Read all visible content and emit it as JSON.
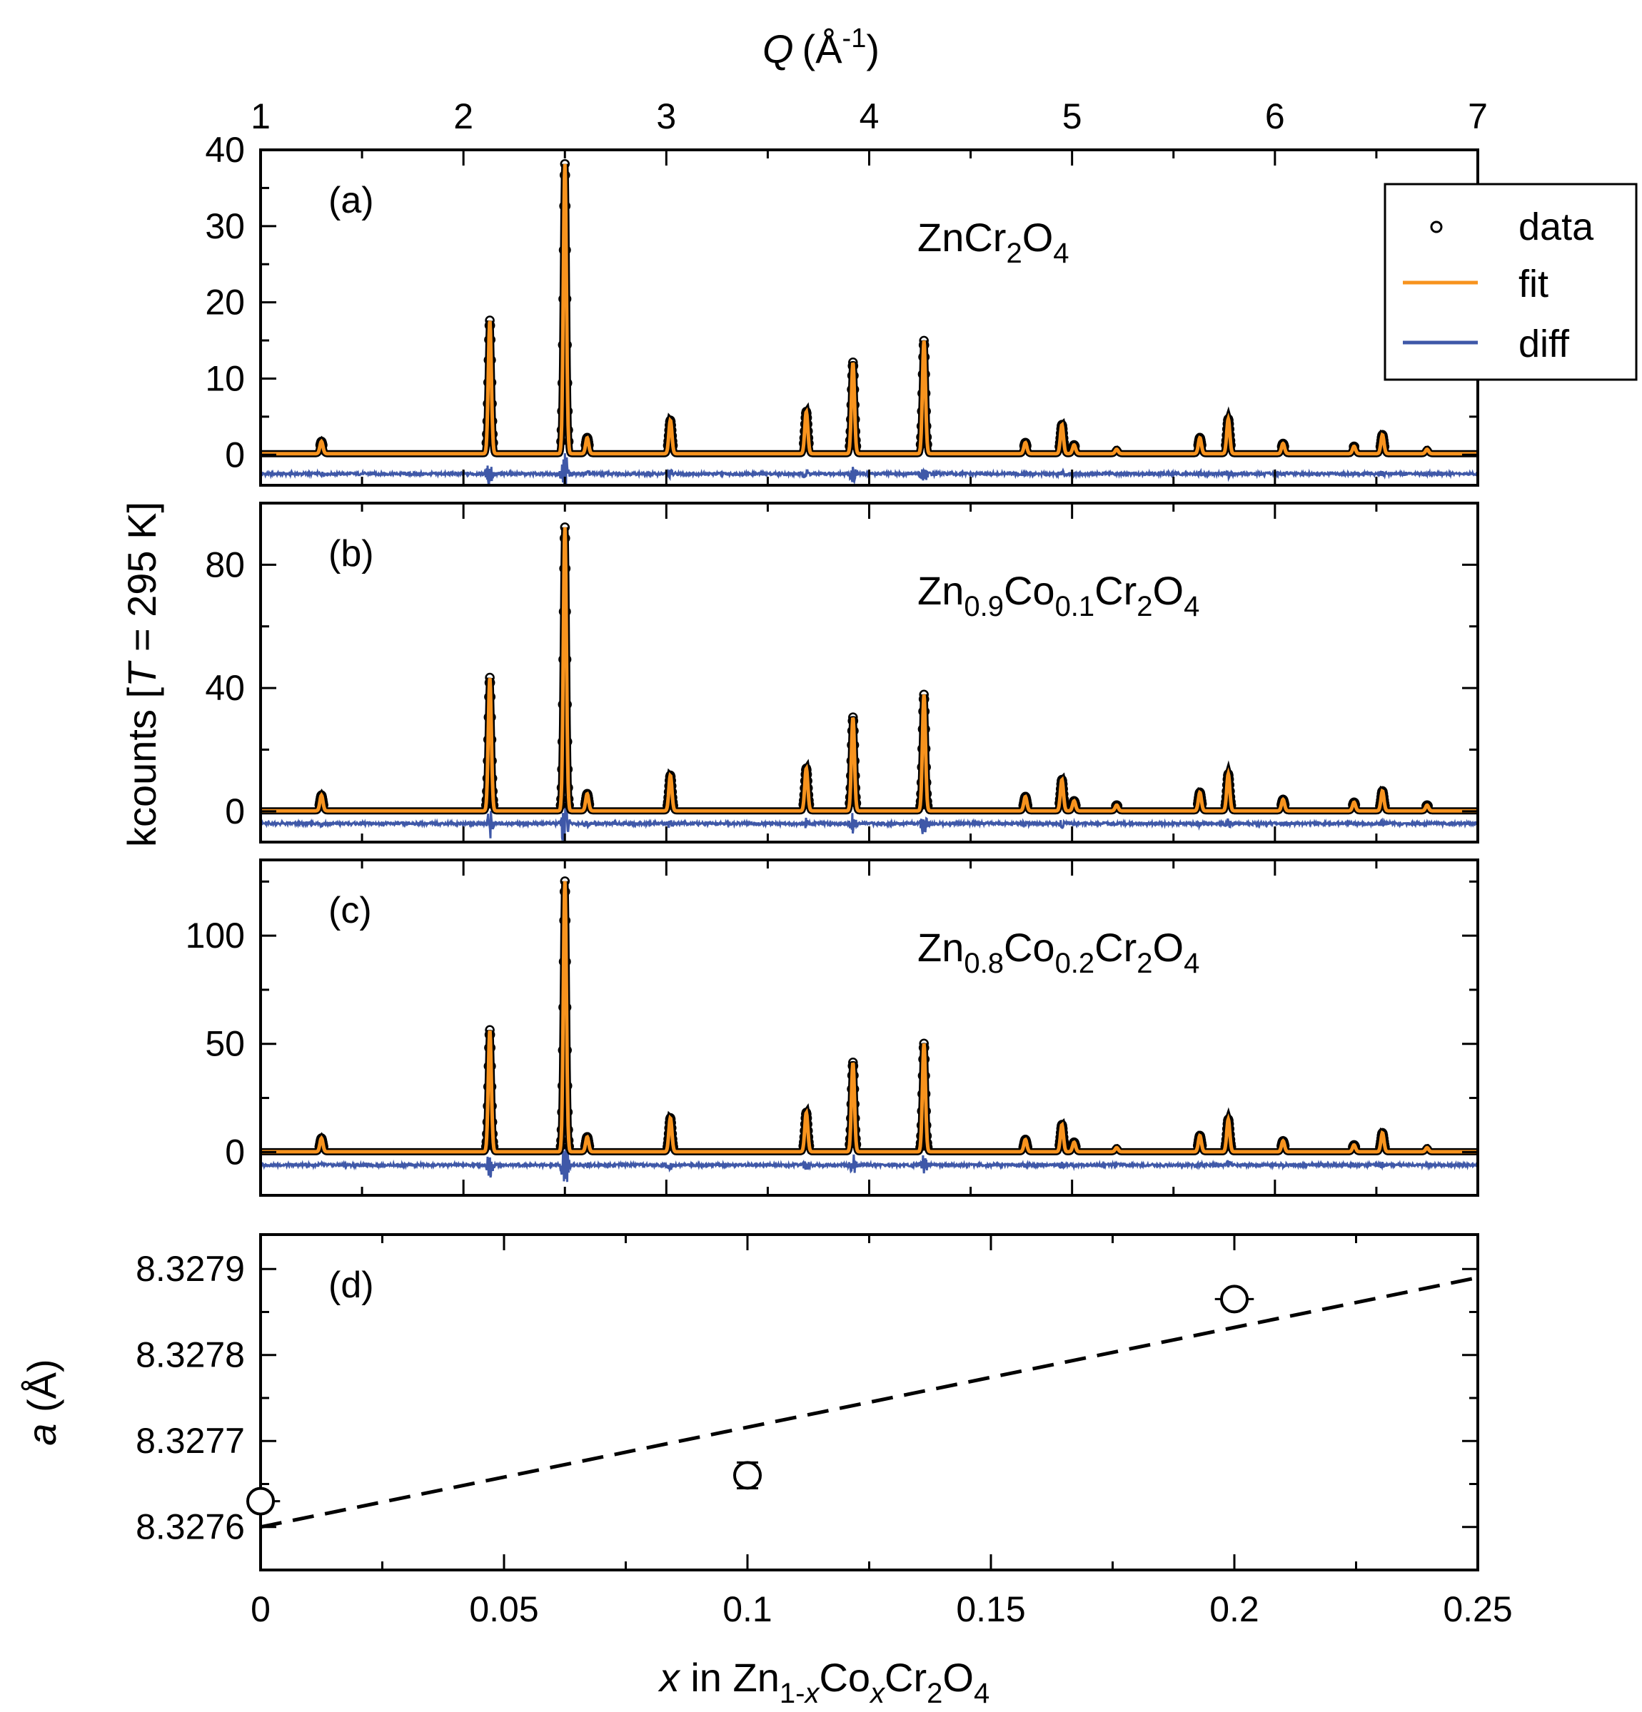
{
  "colors": {
    "data": "#000000",
    "fit": "#f7931e",
    "diff": "#3f58a8",
    "trend": "#000000"
  },
  "top_axis": {
    "label_italic": "Q",
    "label_unit": "(Å",
    "label_sup": "-1",
    "label_close": ")",
    "range": [
      1,
      7
    ],
    "ticks": [
      "1",
      "2",
      "3",
      "4",
      "5",
      "6",
      "7"
    ]
  },
  "shared_ylabel": {
    "prefix": "kcounts [",
    "italic": "T",
    "suffix": " = 295 K]"
  },
  "legend": {
    "data": "data",
    "fit": "fit",
    "diff": "diff"
  },
  "panels": [
    {
      "label": "(a)",
      "formula": [
        {
          "t": "ZnCr"
        },
        {
          "sub": "2"
        },
        {
          "t": "O"
        },
        {
          "sub": "4"
        }
      ],
      "ylim": [
        -4,
        40
      ],
      "yticks": [
        "0",
        "10",
        "20",
        "30",
        "40"
      ],
      "diff_offset": -2.5,
      "max_peak": 38
    },
    {
      "label": "(b)",
      "formula": [
        {
          "t": "Zn"
        },
        {
          "sub": "0.9"
        },
        {
          "t": "Co"
        },
        {
          "sub": "0.1"
        },
        {
          "t": "Cr"
        },
        {
          "sub": "2"
        },
        {
          "t": "O"
        },
        {
          "sub": "4"
        }
      ],
      "ylim": [
        -10,
        100
      ],
      "yticks": [
        "0",
        "40",
        "80"
      ],
      "diff_offset": -4,
      "max_peak": 92
    },
    {
      "label": "(c)",
      "formula": [
        {
          "t": "Zn"
        },
        {
          "sub": "0.8"
        },
        {
          "t": "Co"
        },
        {
          "sub": "0.2"
        },
        {
          "t": "Cr"
        },
        {
          "sub": "2"
        },
        {
          "t": "O"
        },
        {
          "sub": "4"
        }
      ],
      "ylim": [
        -20,
        135
      ],
      "yticks": [
        "0",
        "50",
        "100"
      ],
      "diff_offset": -6,
      "max_peak": 125
    }
  ],
  "chart_data": {
    "type": "line",
    "title": "",
    "xlabel": "Q (Å-1)",
    "ylabel": "kcounts [T = 295 K]",
    "xlim": [
      1,
      7
    ],
    "peaks_q": [
      1.3,
      2.13,
      2.5,
      2.61,
      3.02,
      3.69,
      3.92,
      4.27,
      4.77,
      4.95,
      5.01,
      5.22,
      5.63,
      5.77,
      6.04,
      6.39,
      6.53,
      6.75
    ],
    "series": [
      {
        "name": "ZnCr2O4",
        "relative_intensity": [
          4.2,
          46,
          100,
          5.5,
          11.5,
          14.5,
          31.5,
          39,
          3.8,
          10,
          3,
          1.5,
          5.5,
          12,
          3.5,
          2.5,
          6.5,
          1.5
        ]
      },
      {
        "name": "Zn0.9Co0.1Cr2O4",
        "relative_intensity": [
          5.5,
          47,
          100,
          6,
          12.5,
          15,
          33,
          41,
          5,
          11,
          3.5,
          2,
          6.5,
          13,
          4,
          3,
          7,
          2
        ]
      },
      {
        "name": "Zn0.8Co0.2Cr2O4",
        "relative_intensity": [
          5,
          45,
          100,
          5.5,
          12.5,
          14.5,
          33,
          40,
          4.5,
          10,
          3.5,
          1.5,
          6,
          12,
          4,
          2.5,
          7,
          1.5
        ]
      }
    ],
    "legend_entries": [
      "data",
      "fit",
      "diff"
    ],
    "lattice_panel": {
      "type": "scatter",
      "label": "(d)",
      "xlabel_italic": "x",
      "xlabel_mid": " in Zn",
      "xlabel_sub1": "1-",
      "xlabel_sub1_italic": "x",
      "xlabel_co": "Co",
      "xlabel_sub2_italic": "x",
      "xlabel_cr": "Cr",
      "xlabel_sub3": "2",
      "xlabel_o": "O",
      "xlabel_sub4": "4",
      "ylabel_italic": "a",
      "ylabel_rest": " (Å)",
      "xlim": [
        0,
        0.25
      ],
      "ylim": [
        8.32755,
        8.32794
      ],
      "xticks": [
        "0",
        "0.05",
        "0.1",
        "0.15",
        "0.2",
        "0.25"
      ],
      "yticks": [
        "8.3276",
        "8.3277",
        "8.3278",
        "8.3279"
      ],
      "points": [
        {
          "x": 0.0,
          "y": 8.32763,
          "yerr": 1.5e-06,
          "xerr": 0.004
        },
        {
          "x": 0.1,
          "y": 8.32766,
          "yerr": 1.5e-05,
          "xerr": 0.0
        },
        {
          "x": 0.2,
          "y": 8.327865,
          "yerr": 1e-06,
          "xerr": 0.004
        }
      ],
      "fit_line": {
        "x": [
          0,
          0.25
        ],
        "y": [
          8.3276,
          8.32789
        ]
      }
    }
  }
}
